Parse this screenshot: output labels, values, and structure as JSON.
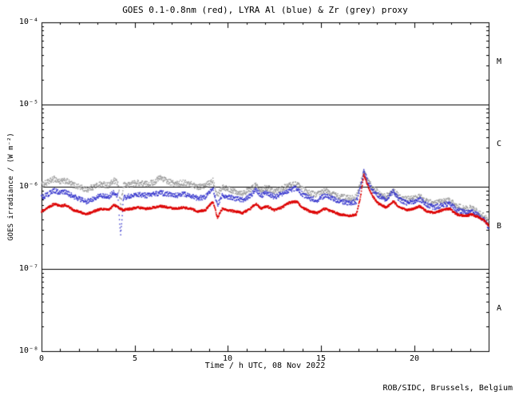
{
  "chart_data": {
    "type": "scatter",
    "title": "GOES 0.1-0.8nm (red), LYRA Al (blue) & Zr (grey) proxy",
    "xlabel": "Time / h UTC, 08 Nov 2022",
    "ylabel": "GOES irradiance / (W m⁻²)",
    "footer": "ROB/SIDC, Brussels, Belgium",
    "xscale": "linear",
    "yscale": "log",
    "xlim": [
      0,
      24
    ],
    "ylim": [
      1e-08,
      0.0001
    ],
    "grid": false,
    "legend": "encoded in title colors",
    "hlines": [
      1e-05,
      1e-06,
      1e-07
    ],
    "xticks": [
      {
        "value": 0,
        "label": "0"
      },
      {
        "value": 5,
        "label": "5"
      },
      {
        "value": 10,
        "label": "10"
      },
      {
        "value": 15,
        "label": "15"
      },
      {
        "value": 20,
        "label": "20"
      }
    ],
    "yticks": [
      {
        "value": 0.0001,
        "label": "10⁻⁴"
      },
      {
        "value": 1e-05,
        "label": "10⁻⁵"
      },
      {
        "value": 1e-06,
        "label": "10⁻⁶"
      },
      {
        "value": 1e-07,
        "label": "10⁻⁷"
      },
      {
        "value": 1e-08,
        "label": "10⁻⁸"
      }
    ],
    "class_labels": [
      "M",
      "C",
      "B",
      "A"
    ],
    "series": [
      {
        "name": "LYRA Zr proxy",
        "color": "#999999",
        "jitter": 0.07,
        "marker_size": 1.4,
        "x": [
          0.0,
          0.3,
          0.7,
          1.0,
          1.3,
          1.7,
          2.0,
          2.4,
          2.8,
          3.2,
          3.6,
          3.9,
          4.1,
          4.25,
          4.4,
          4.8,
          5.2,
          5.6,
          6.0,
          6.4,
          6.8,
          7.2,
          7.6,
          8.0,
          8.4,
          8.8,
          9.2,
          9.45,
          9.7,
          10.0,
          10.4,
          10.8,
          11.2,
          11.5,
          11.8,
          12.1,
          12.5,
          12.9,
          13.3,
          13.7,
          14.0,
          14.4,
          14.8,
          15.2,
          15.6,
          16.0,
          16.5,
          16.9,
          17.1,
          17.3,
          17.5,
          17.8,
          18.1,
          18.5,
          18.9,
          19.2,
          19.6,
          20.0,
          20.3,
          20.7,
          21.1,
          21.5,
          21.9,
          22.3,
          22.7,
          23.1,
          23.5,
          23.8,
          24.0
        ],
        "y": [
          1.05e-06,
          1.12e-06,
          1.25e-06,
          1.15e-06,
          1.18e-06,
          1.05e-06,
          1e-06,
          9.2e-07,
          1e-06,
          1.08e-06,
          1.04e-06,
          1.18e-06,
          1.1e-06,
          6e-07,
          1.04e-06,
          1.08e-06,
          1.12e-06,
          1.08e-06,
          1.12e-06,
          1.3e-06,
          1.15e-06,
          1.08e-06,
          1.12e-06,
          1.08e-06,
          1e-06,
          1.02e-06,
          1.2e-06,
          8e-07,
          1e-06,
          9.4e-07,
          8.8e-07,
          8.4e-07,
          9.2e-07,
          1.05e-06,
          9.2e-07,
          9.8e-07,
          8.8e-07,
          9.4e-07,
          1.05e-06,
          1.08e-06,
          9.4e-07,
          8.4e-07,
          8e-07,
          9e-07,
          8.2e-07,
          7.6e-07,
          7.2e-07,
          7.4e-07,
          1.05e-06,
          1.5e-06,
          1.2e-06,
          9.5e-07,
          8.4e-07,
          7.6e-07,
          8.8e-07,
          7.6e-07,
          7e-07,
          7.2e-07,
          7.6e-07,
          6.6e-07,
          6.2e-07,
          6.6e-07,
          6.8e-07,
          5.8e-07,
          5.4e-07,
          5.5e-07,
          4.8e-07,
          4.3e-07,
          3.6e-07
        ]
      },
      {
        "name": "LYRA Al proxy",
        "color": "#3333cc",
        "jitter": 0.06,
        "marker_size": 1.4,
        "x": [
          0.0,
          0.3,
          0.7,
          1.0,
          1.3,
          1.7,
          2.0,
          2.4,
          2.8,
          3.2,
          3.6,
          3.9,
          4.1,
          4.25,
          4.4,
          4.8,
          5.2,
          5.6,
          6.0,
          6.4,
          6.8,
          7.2,
          7.6,
          8.0,
          8.4,
          8.8,
          9.2,
          9.45,
          9.7,
          10.0,
          10.4,
          10.8,
          11.2,
          11.5,
          11.8,
          12.1,
          12.5,
          12.9,
          13.3,
          13.7,
          14.0,
          14.4,
          14.8,
          15.2,
          15.6,
          16.0,
          16.5,
          16.9,
          17.1,
          17.3,
          17.5,
          17.8,
          18.1,
          18.5,
          18.9,
          19.2,
          19.6,
          20.0,
          20.3,
          20.7,
          21.1,
          21.5,
          21.9,
          22.3,
          22.7,
          23.1,
          23.5,
          23.8,
          24.0
        ],
        "y": [
          7.4e-07,
          8e-07,
          9e-07,
          8.4e-07,
          8.6e-07,
          7.6e-07,
          7.2e-07,
          6.6e-07,
          7.2e-07,
          7.8e-07,
          7.5e-07,
          8.6e-07,
          7.8e-07,
          2.6e-07,
          7.4e-07,
          7.7e-07,
          8.1e-07,
          7.8e-07,
          8.1e-07,
          8.4e-07,
          8.1e-07,
          7.8e-07,
          8.1e-07,
          7.8e-07,
          7.2e-07,
          7.5e-07,
          9.6e-07,
          6e-07,
          7.8e-07,
          7.5e-07,
          7.2e-07,
          6.9e-07,
          7.8e-07,
          9e-07,
          7.8e-07,
          8.4e-07,
          7.5e-07,
          8.1e-07,
          9.2e-07,
          9.5e-07,
          8.1e-07,
          7.2e-07,
          6.9e-07,
          7.8e-07,
          7.2e-07,
          6.6e-07,
          6.3e-07,
          6.6e-07,
          9.5e-07,
          1.55e-06,
          1.15e-06,
          8.8e-07,
          7.8e-07,
          7e-07,
          8.8e-07,
          7e-07,
          6.4e-07,
          6.6e-07,
          7e-07,
          6e-07,
          5.6e-07,
          6e-07,
          6.2e-07,
          5.2e-07,
          4.9e-07,
          5e-07,
          4.4e-07,
          3.9e-07,
          3.2e-07
        ]
      },
      {
        "name": "GOES 0.1-0.8nm",
        "color": "#dd0000",
        "jitter": 0.025,
        "marker_size": 1.6,
        "x": [
          0.0,
          0.3,
          0.7,
          1.0,
          1.3,
          1.7,
          2.0,
          2.4,
          2.8,
          3.2,
          3.6,
          3.9,
          4.1,
          4.4,
          4.8,
          5.2,
          5.6,
          6.0,
          6.4,
          6.8,
          7.2,
          7.6,
          8.0,
          8.4,
          8.8,
          9.2,
          9.45,
          9.7,
          10.0,
          10.4,
          10.8,
          11.2,
          11.5,
          11.8,
          12.1,
          12.5,
          12.9,
          13.3,
          13.7,
          14.0,
          14.4,
          14.8,
          15.2,
          15.6,
          16.0,
          16.5,
          16.9,
          17.1,
          17.3,
          17.5,
          17.8,
          18.1,
          18.5,
          18.9,
          19.2,
          19.6,
          20.0,
          20.3,
          20.7,
          21.1,
          21.5,
          21.9,
          22.3,
          22.7,
          23.1,
          23.5,
          23.8,
          24.0
        ],
        "y": [
          5e-07,
          5.5e-07,
          6.2e-07,
          5.8e-07,
          6e-07,
          5.2e-07,
          5e-07,
          4.6e-07,
          5e-07,
          5.4e-07,
          5.2e-07,
          6e-07,
          5.6e-07,
          5.2e-07,
          5.4e-07,
          5.6e-07,
          5.4e-07,
          5.6e-07,
          5.8e-07,
          5.6e-07,
          5.4e-07,
          5.6e-07,
          5.4e-07,
          5e-07,
          5.2e-07,
          6.6e-07,
          4.2e-07,
          5.4e-07,
          5.2e-07,
          5e-07,
          4.8e-07,
          5.4e-07,
          6.2e-07,
          5.4e-07,
          5.8e-07,
          5.2e-07,
          5.6e-07,
          6.4e-07,
          6.6e-07,
          5.6e-07,
          5e-07,
          4.8e-07,
          5.4e-07,
          5e-07,
          4.6e-07,
          4.4e-07,
          4.6e-07,
          7e-07,
          1.4e-06,
          1.05e-06,
          7.5e-07,
          6.2e-07,
          5.6e-07,
          6.6e-07,
          5.6e-07,
          5.2e-07,
          5.4e-07,
          5.8e-07,
          5e-07,
          4.8e-07,
          5.2e-07,
          5.4e-07,
          4.6e-07,
          4.4e-07,
          4.6e-07,
          4.2e-07,
          3.8e-07,
          3.4e-07
        ]
      }
    ]
  }
}
